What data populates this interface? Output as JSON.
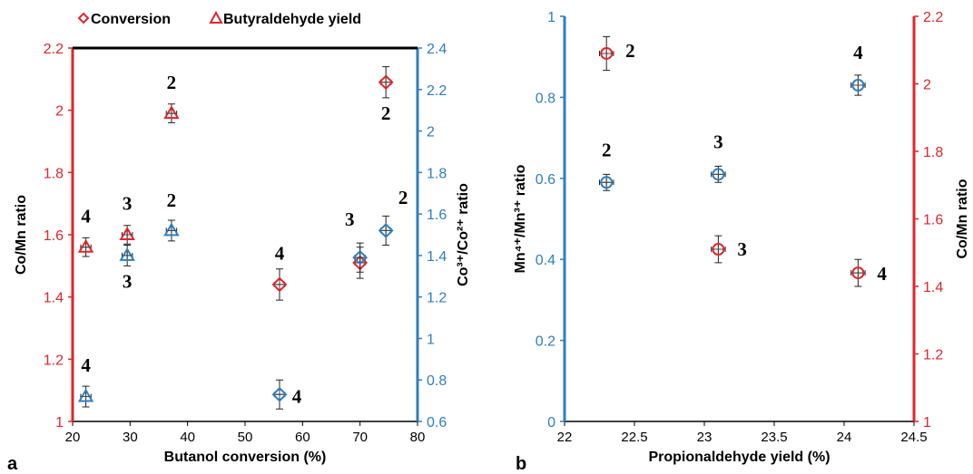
{
  "colors": {
    "red": "#e0262b",
    "blue": "#2f7fc1",
    "axis": "#000000"
  },
  "chart_data": [
    {
      "panel_label": "a",
      "type": "scatter",
      "legend": {
        "position": "top",
        "items": [
          "Conversion",
          "Butyraldehyde yield"
        ],
        "markers": [
          "diamond",
          "triangle"
        ]
      },
      "xlabel": "Butanol conversion (%)",
      "ylabel_left": "Co/Mn ratio",
      "ylabel_right": "Co³⁺/Co²⁺ ratio",
      "xlim": [
        20,
        80
      ],
      "ylim_left": [
        1,
        2.2
      ],
      "ylim_right": [
        0.6,
        2.4
      ],
      "xticks": [
        "20",
        "30",
        "40",
        "50",
        "60",
        "70",
        "80"
      ],
      "yticks_left": [
        "1",
        "1.2",
        "1.4",
        "1.6",
        "1.8",
        "2",
        "2.2"
      ],
      "yticks_right": [
        "0.6",
        "0.8",
        "1",
        "1.2",
        "1.4",
        "1.6",
        "1.8",
        "2",
        "2.2",
        "2.4"
      ],
      "grid": false,
      "series": [
        {
          "axis": "left",
          "color": "red",
          "points": [
            {
              "x": 22.3,
              "y": 1.56,
              "marker": "triangle",
              "yerr": 0.03,
              "xerr": 0.9
            },
            {
              "x": 29.5,
              "y": 1.6,
              "marker": "triangle",
              "yerr": 0.03,
              "xerr": 0.9
            },
            {
              "x": 37.2,
              "y": 1.99,
              "marker": "triangle",
              "yerr": 0.03,
              "xerr": 0.9
            },
            {
              "x": 56.0,
              "y": 1.44,
              "marker": "diamond",
              "yerr": 0.05,
              "xerr": 0.9
            },
            {
              "x": 70.0,
              "y": 1.51,
              "marker": "diamond",
              "yerr": 0.05,
              "xerr": 0.9
            },
            {
              "x": 74.5,
              "y": 2.09,
              "marker": "diamond",
              "yerr": 0.05,
              "xerr": 0.9
            }
          ]
        },
        {
          "axis": "right",
          "color": "blue",
          "points": [
            {
              "x": 22.3,
              "y": 0.72,
              "marker": "triangle",
              "yerr": 0.05,
              "xerr": 0.9
            },
            {
              "x": 29.5,
              "y": 1.4,
              "marker": "triangle",
              "yerr": 0.05,
              "xerr": 0.9
            },
            {
              "x": 37.2,
              "y": 1.52,
              "marker": "triangle",
              "yerr": 0.05,
              "xerr": 0.9
            },
            {
              "x": 56.0,
              "y": 0.73,
              "marker": "diamond",
              "yerr": 0.07,
              "xerr": 0.9
            },
            {
              "x": 70.0,
              "y": 1.39,
              "marker": "diamond",
              "yerr": 0.07,
              "xerr": 0.9
            },
            {
              "x": 74.5,
              "y": 1.52,
              "marker": "diamond",
              "yerr": 0.07,
              "xerr": 0.9
            }
          ]
        }
      ],
      "annotations": [
        {
          "text": "4",
          "x": 22.3,
          "y_left": 1.66
        },
        {
          "text": "3",
          "x": 29.5,
          "y_left": 1.7
        },
        {
          "text": "3",
          "x": 29.5,
          "y_left": 1.45
        },
        {
          "text": "2",
          "x": 37.2,
          "y_left": 2.09
        },
        {
          "text": "2",
          "x": 37.2,
          "y_left": 1.71
        },
        {
          "text": "4",
          "x": 56.0,
          "y_left": 1.54
        },
        {
          "text": "4",
          "x": 59.0,
          "y_left": 1.08
        },
        {
          "text": "3",
          "x": 68.2,
          "y_left": 1.65
        },
        {
          "text": "2",
          "x": 74.5,
          "y_left": 1.99
        },
        {
          "text": "2",
          "x": 77.5,
          "y_left": 1.72
        },
        {
          "text": "4",
          "x": 22.3,
          "y_left": 1.18
        }
      ]
    },
    {
      "panel_label": "b",
      "type": "scatter",
      "xlabel": "Propionaldehyde yield (%)",
      "ylabel_left": "Mn⁴⁺/Mn³⁺ ratio",
      "ylabel_right": "Co/Mn ratio",
      "xlim": [
        22,
        24.5
      ],
      "ylim_left": [
        0,
        1
      ],
      "ylim_right": [
        1,
        2.2
      ],
      "xticks": [
        "22",
        "22.5",
        "23",
        "23.5",
        "24",
        "24.5"
      ],
      "yticks_left": [
        "0",
        "0.2",
        "0.4",
        "0.6",
        "0.8",
        "1"
      ],
      "yticks_right": [
        "1",
        "1.2",
        "1.4",
        "1.6",
        "1.8",
        "2",
        "2.2"
      ],
      "grid": false,
      "series": [
        {
          "axis": "left",
          "color": "blue",
          "points": [
            {
              "x": 22.3,
              "y": 0.59,
              "yerr": 0.02,
              "xerr": 0.05
            },
            {
              "x": 23.1,
              "y": 0.61,
              "yerr": 0.02,
              "xerr": 0.05
            },
            {
              "x": 24.1,
              "y": 0.83,
              "yerr": 0.025,
              "xerr": 0.05
            }
          ]
        },
        {
          "axis": "right",
          "color": "red",
          "points": [
            {
              "x": 22.3,
              "y": 2.09,
              "yerr": 0.05,
              "xerr": 0.05
            },
            {
              "x": 23.1,
              "y": 1.51,
              "yerr": 0.04,
              "xerr": 0.05
            },
            {
              "x": 24.1,
              "y": 1.44,
              "yerr": 0.04,
              "xerr": 0.05
            }
          ]
        }
      ],
      "annotations": [
        {
          "text": "2",
          "x": 22.3,
          "y_left": 0.67
        },
        {
          "text": "2",
          "x": 22.47,
          "y_left": 0.915
        },
        {
          "text": "3",
          "x": 23.1,
          "y_left": 0.69
        },
        {
          "text": "3",
          "x": 23.27,
          "y_left": 0.425
        },
        {
          "text": "4",
          "x": 24.1,
          "y_left": 0.91
        },
        {
          "text": "4",
          "x": 24.27,
          "y_left": 0.365
        }
      ]
    }
  ]
}
